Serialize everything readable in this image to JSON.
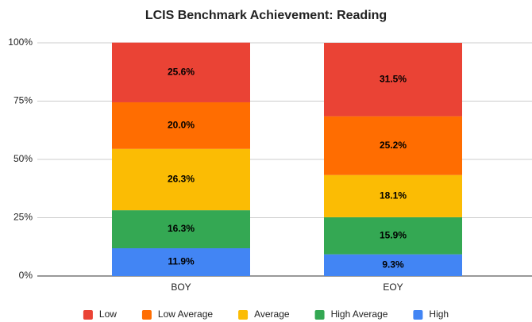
{
  "chart_data": {
    "type": "stacked_bar",
    "title": "LCIS Benchmark Achievement: Reading",
    "categories": [
      "BOY",
      "EOY"
    ],
    "series": [
      {
        "name": "Low",
        "color": "#ea4335",
        "values": [
          25.6,
          31.5
        ],
        "value_labels": [
          "25.6%",
          "31.5%"
        ]
      },
      {
        "name": "Low Average",
        "color": "#ff6d01",
        "values": [
          20.0,
          25.2
        ],
        "value_labels": [
          "20.0%",
          "25.2%"
        ]
      },
      {
        "name": "Average",
        "color": "#fbbc04",
        "values": [
          26.3,
          18.1
        ],
        "value_labels": [
          "26.3%",
          "18.1%"
        ]
      },
      {
        "name": "High Average",
        "color": "#34a853",
        "values": [
          16.3,
          15.9
        ],
        "value_labels": [
          "16.3%",
          "15.9%"
        ]
      },
      {
        "name": "High",
        "color": "#4285f4",
        "values": [
          11.9,
          9.3
        ],
        "value_labels": [
          "11.9%",
          "9.3%"
        ]
      }
    ],
    "ylim": [
      0,
      100
    ],
    "yticks": [
      {
        "value": 0,
        "label": "0%"
      },
      {
        "value": 25,
        "label": "25%"
      },
      {
        "value": 50,
        "label": "50%"
      },
      {
        "value": 75,
        "label": "75%"
      },
      {
        "value": 100,
        "label": "100%"
      }
    ],
    "grid": true,
    "legend": "bottom"
  }
}
